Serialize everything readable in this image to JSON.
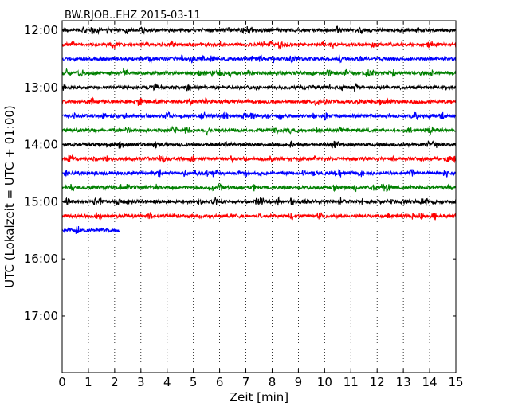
{
  "chart_data": {
    "type": "line",
    "title": "BW.RJOB..EHZ 2015-03-11",
    "xlabel": "Zeit  [min]",
    "ylabel": "UTC (Lokalzeit = UTC + 01:00)",
    "xlim": [
      0,
      15
    ],
    "x_ticks": [
      "0",
      "1",
      "2",
      "3",
      "4",
      "5",
      "6",
      "7",
      "8",
      "9",
      "10",
      "11",
      "12",
      "13",
      "14",
      "15"
    ],
    "y_ticks": [
      "12:00",
      "13:00",
      "14:00",
      "15:00",
      "16:00",
      "17:00"
    ],
    "grid": "vertical dotted",
    "color_cycle": [
      "#000000",
      "#ff0000",
      "#0000ff",
      "#008000"
    ],
    "traces": [
      {
        "start": "12:00",
        "color": "#000000",
        "x_end": 15
      },
      {
        "start": "12:15",
        "color": "#ff0000",
        "x_end": 15
      },
      {
        "start": "12:30",
        "color": "#0000ff",
        "x_end": 15
      },
      {
        "start": "12:45",
        "color": "#008000",
        "x_end": 15
      },
      {
        "start": "13:00",
        "color": "#000000",
        "x_end": 15
      },
      {
        "start": "13:15",
        "color": "#ff0000",
        "x_end": 15
      },
      {
        "start": "13:30",
        "color": "#0000ff",
        "x_end": 15
      },
      {
        "start": "13:45",
        "color": "#008000",
        "x_end": 15
      },
      {
        "start": "14:00",
        "color": "#000000",
        "x_end": 15
      },
      {
        "start": "14:15",
        "color": "#ff0000",
        "x_end": 15
      },
      {
        "start": "14:30",
        "color": "#0000ff",
        "x_end": 15
      },
      {
        "start": "14:45",
        "color": "#008000",
        "x_end": 15
      },
      {
        "start": "15:00",
        "color": "#000000",
        "x_end": 15
      },
      {
        "start": "15:15",
        "color": "#ff0000",
        "x_end": 15
      },
      {
        "start": "15:30",
        "color": "#0000ff",
        "x_end": 2.2
      }
    ]
  }
}
